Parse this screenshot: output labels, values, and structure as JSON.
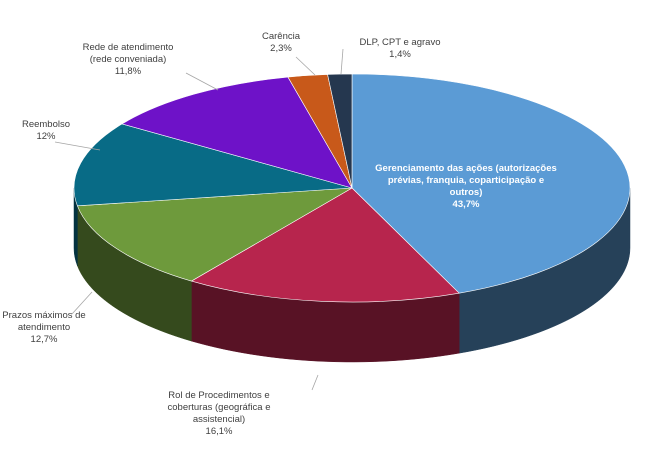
{
  "chart_data": {
    "type": "pie",
    "style": "3d",
    "title": "",
    "slices": [
      {
        "label_lines": [
          "Gerenciamento das ações (autorizações",
          "prévias, franquia, coparticipação e",
          "outros)"
        ],
        "value_label": "43,7%",
        "value": 43.7,
        "color": "#5b9bd5"
      },
      {
        "label_lines": [
          "Rol de Procedimentos e",
          "coberturas (geográfica e",
          "assistencial)"
        ],
        "value_label": "16,1%",
        "value": 16.1,
        "color": "#b7254d"
      },
      {
        "label_lines": [
          "Prazos máximos de",
          "atendimento"
        ],
        "value_label": "12,7%",
        "value": 12.7,
        "color": "#6e9a3c"
      },
      {
        "label_lines": [
          "Reembolso"
        ],
        "value_label": "12%",
        "value": 12.0,
        "color": "#086b86"
      },
      {
        "label_lines": [
          "Rede de atendimento",
          "(rede conveniada)"
        ],
        "value_label": "11,8%",
        "value": 11.8,
        "color": "#6e12c8"
      },
      {
        "label_lines": [
          "Carência"
        ],
        "value_label": "2,3%",
        "value": 2.3,
        "color": "#c8591a"
      },
      {
        "label_lines": [
          "DLP, CPT e agravo"
        ],
        "value_label": "1,4%",
        "value": 1.4,
        "color": "#25374f"
      }
    ]
  }
}
